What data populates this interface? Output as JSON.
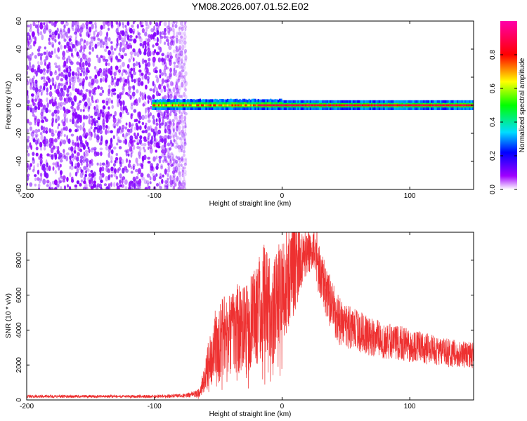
{
  "title": "YM08.2026.007.01.52.E02",
  "chart_data": [
    {
      "type": "heatmap",
      "xlabel": "Height of straight line (km)",
      "ylabel": "Frequency (Hz)",
      "xlim": [
        -200,
        150
      ],
      "ylim": [
        -60,
        60
      ],
      "xticks": [
        -200,
        -100,
        0,
        100
      ],
      "xticklabels": [
        "-200",
        "-100",
        "0",
        "100"
      ],
      "yticks": [
        -60,
        -40,
        -20,
        0,
        20,
        40,
        60
      ],
      "yticklabels": [
        "-60",
        "-40",
        "-20",
        "0",
        "20",
        "40",
        "60"
      ],
      "colorbar": {
        "label": "Normalized spectral amplitude",
        "range": [
          0,
          1
        ],
        "ticks": [
          0.0,
          0.2,
          0.4,
          0.6,
          0.8
        ],
        "ticklabels": [
          "0.0",
          "0.2",
          "0.4",
          "0.6",
          "0.8"
        ]
      },
      "features": [
        {
          "name": "broadband noise",
          "x_range": [
            -200,
            -75
          ],
          "freq_range": [
            -60,
            60
          ],
          "amplitude": 0.1
        },
        {
          "name": "signal band",
          "x_range": [
            -102,
            150
          ],
          "freq_center": 0,
          "amplitude": 0.95
        }
      ]
    },
    {
      "type": "line",
      "xlabel": "Height of straight line (km)",
      "ylabel": "SNR (10 * v/v)",
      "xlim": [
        -200,
        150
      ],
      "ylim": [
        0,
        9600
      ],
      "xticks": [
        -200,
        -100,
        0,
        100
      ],
      "xticklabels": [
        "-200",
        "-100",
        "0",
        "100"
      ],
      "yticks": [
        0,
        2000,
        4000,
        6000,
        8000
      ],
      "yticklabels": [
        "0",
        "2000",
        "4000",
        "6000",
        "8000"
      ],
      "series": [
        {
          "name": "SNR",
          "color": "#ee3030",
          "envelope": {
            "x": [
              -200,
              -150,
              -100,
              -75,
              -65,
              -60,
              -55,
              -50,
              -45,
              -40,
              -35,
              -30,
              -25,
              -20,
              -15,
              -10,
              -5,
              0,
              5,
              10,
              15,
              20,
              25,
              30,
              35,
              40,
              45,
              50,
              60,
              70,
              80,
              90,
              100,
              110,
              120,
              130,
              140,
              150
            ],
            "y": [
              200,
              200,
              200,
              250,
              400,
              1400,
              2800,
              3300,
              3700,
              3700,
              4100,
              4000,
              4300,
              5000,
              5700,
              5200,
              5600,
              6400,
              6900,
              7600,
              8100,
              8500,
              8300,
              7200,
              6100,
              5200,
              4500,
              4200,
              3900,
              3600,
              3400,
              3300,
              3100,
              3000,
              2800,
              2700,
              2600,
              2500
            ]
          },
          "noise_fraction": [
            0.3,
            0.3,
            0.3,
            0.35,
            0.45,
            0.5,
            0.5,
            0.5,
            0.45,
            0.45,
            0.45,
            0.45,
            0.45,
            0.45,
            0.45,
            0.4,
            0.35,
            0.35,
            0.3,
            0.25,
            0.15,
            0.1,
            0.1,
            0.15,
            0.18,
            0.2,
            0.22,
            0.22,
            0.22,
            0.22,
            0.22,
            0.22,
            0.22,
            0.22,
            0.22,
            0.22,
            0.22,
            0.22
          ]
        }
      ]
    }
  ]
}
